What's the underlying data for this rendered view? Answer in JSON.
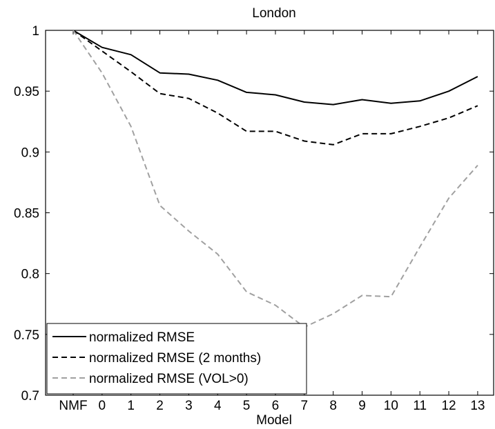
{
  "chart_data": {
    "type": "line",
    "title": "London",
    "xlabel": "Model",
    "ylabel": "",
    "categories": [
      "NMF",
      "0",
      "1",
      "2",
      "3",
      "4",
      "5",
      "6",
      "7",
      "8",
      "9",
      "10",
      "11",
      "12",
      "13"
    ],
    "ylim": [
      0.7,
      1.0
    ],
    "yticks": [
      "0.7",
      "0.75",
      "0.8",
      "0.85",
      "0.9",
      "0.95",
      "1"
    ],
    "grid": false,
    "legend_position": "bottom-left",
    "series": [
      {
        "name": "normalized RMSE",
        "color": "#000000",
        "dash": "solid",
        "values": [
          1.0,
          0.986,
          0.98,
          0.965,
          0.964,
          0.959,
          0.949,
          0.947,
          0.941,
          0.939,
          0.943,
          0.94,
          0.942,
          0.95,
          0.962
        ]
      },
      {
        "name": "normalized RMSE (2 months)",
        "color": "#000000",
        "dash": "dashed",
        "values": [
          1.0,
          0.983,
          0.966,
          0.948,
          0.944,
          0.932,
          0.917,
          0.917,
          0.909,
          0.906,
          0.915,
          0.915,
          0.921,
          0.928,
          0.938
        ]
      },
      {
        "name": "normalized RMSE (VOL>0)",
        "color": "#a0a0a0",
        "dash": "dashed",
        "values": [
          1.0,
          0.965,
          0.921,
          0.856,
          0.835,
          0.816,
          0.785,
          0.774,
          0.756,
          0.767,
          0.782,
          0.781,
          0.822,
          0.862,
          0.889
        ]
      }
    ]
  }
}
